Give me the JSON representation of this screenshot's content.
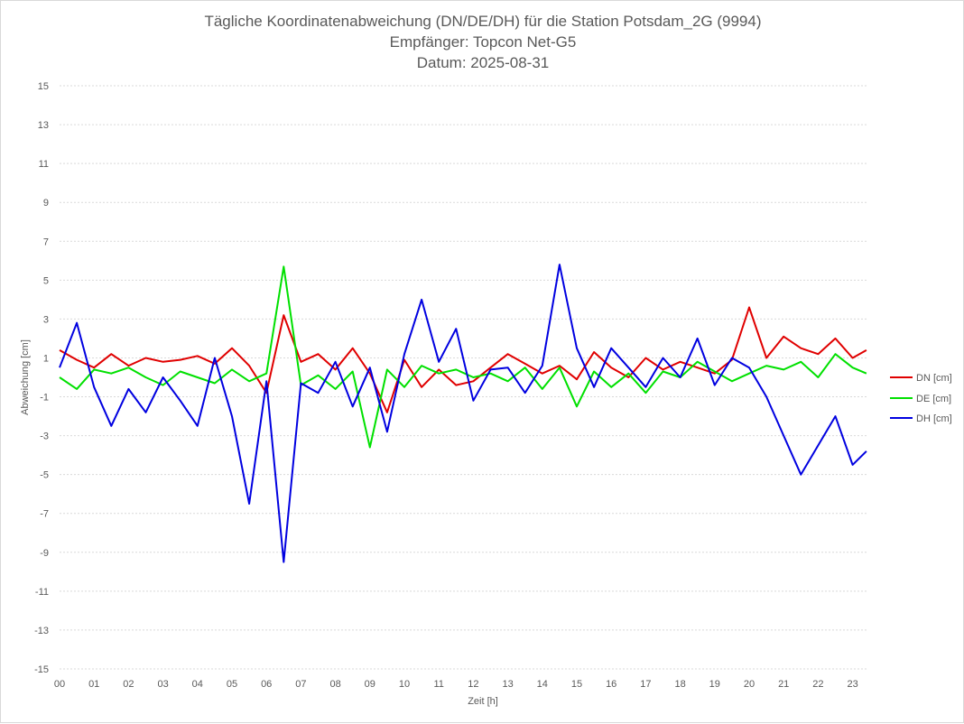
{
  "chart_data": {
    "type": "line",
    "title": "Tägliche Koordinatenabweichung (DN/DE/DH) für die Station Potsdam_2G (9994)",
    "subtitle_lines": [
      "Empfänger: Topcon Net-G5",
      "Datum: 2025-08-31"
    ],
    "xlabel": "Zeit [h]",
    "ylabel": "Abweichung [cm]",
    "xlim": [
      0,
      23.45
    ],
    "ylim": [
      -15,
      15
    ],
    "x_ticks": [
      "00",
      "01",
      "02",
      "03",
      "04",
      "05",
      "06",
      "07",
      "08",
      "09",
      "10",
      "11",
      "12",
      "13",
      "14",
      "15",
      "16",
      "17",
      "18",
      "19",
      "20",
      "21",
      "22",
      "23"
    ],
    "y_ticks": [
      15,
      13,
      11,
      9,
      7,
      5,
      3,
      1,
      -1,
      -3,
      -5,
      -7,
      -9,
      -11,
      -13,
      -15
    ],
    "grid": "horizontal dotted",
    "legend_position": "right",
    "x": [
      0.0,
      0.5,
      1.0,
      1.5,
      2.0,
      2.5,
      3.0,
      3.5,
      4.0,
      4.5,
      5.0,
      5.5,
      6.0,
      6.5,
      7.0,
      7.5,
      8.0,
      8.5,
      9.0,
      9.5,
      10.0,
      10.5,
      11.0,
      11.5,
      12.0,
      12.5,
      13.0,
      13.5,
      14.0,
      14.5,
      15.0,
      15.5,
      16.0,
      16.5,
      17.0,
      17.5,
      18.0,
      18.5,
      19.0,
      19.5,
      20.0,
      20.5,
      21.0,
      21.5,
      22.0,
      22.5,
      23.0,
      23.4
    ],
    "series": [
      {
        "name": "DN [cm]",
        "color": "#e00000",
        "values": [
          1.4,
          0.9,
          0.5,
          1.2,
          0.6,
          1.0,
          0.8,
          0.9,
          1.1,
          0.7,
          1.5,
          0.6,
          -0.8,
          3.2,
          0.8,
          1.2,
          0.4,
          1.5,
          0.2,
          -1.8,
          0.9,
          -0.5,
          0.4,
          -0.4,
          -0.2,
          0.5,
          1.2,
          0.7,
          0.2,
          0.6,
          -0.1,
          1.3,
          0.5,
          0.0,
          1.0,
          0.4,
          0.8,
          0.5,
          0.2,
          0.9,
          3.6,
          1.0,
          2.1,
          1.5,
          1.2,
          2.0,
          1.0,
          1.4
        ]
      },
      {
        "name": "DE [cm]",
        "color": "#00e000",
        "values": [
          0.0,
          -0.6,
          0.4,
          0.2,
          0.5,
          0.0,
          -0.4,
          0.3,
          0.0,
          -0.3,
          0.4,
          -0.2,
          0.2,
          5.7,
          -0.4,
          0.1,
          -0.6,
          0.3,
          -3.6,
          0.4,
          -0.5,
          0.6,
          0.2,
          0.4,
          0.0,
          0.2,
          -0.2,
          0.5,
          -0.6,
          0.5,
          -1.5,
          0.3,
          -0.5,
          0.2,
          -0.8,
          0.3,
          0.0,
          0.8,
          0.3,
          -0.2,
          0.2,
          0.6,
          0.4,
          0.8,
          0.0,
          1.2,
          0.5,
          0.2
        ]
      },
      {
        "name": "DH [cm]",
        "color": "#0000e0",
        "values": [
          0.5,
          2.8,
          -0.5,
          -2.5,
          -0.6,
          -1.8,
          0.0,
          -1.2,
          -2.5,
          1.0,
          -2.0,
          -6.5,
          -0.2,
          -9.5,
          -0.3,
          -0.8,
          0.8,
          -1.5,
          0.5,
          -2.8,
          1.2,
          4.0,
          0.8,
          2.5,
          -1.2,
          0.4,
          0.5,
          -0.8,
          0.6,
          5.8,
          1.5,
          -0.5,
          1.5,
          0.5,
          -0.5,
          1.0,
          0.0,
          2.0,
          -0.4,
          1.0,
          0.5,
          -1.0,
          -3.0,
          -5.0,
          -3.5,
          -2.0,
          -4.5,
          -3.8
        ]
      }
    ]
  }
}
